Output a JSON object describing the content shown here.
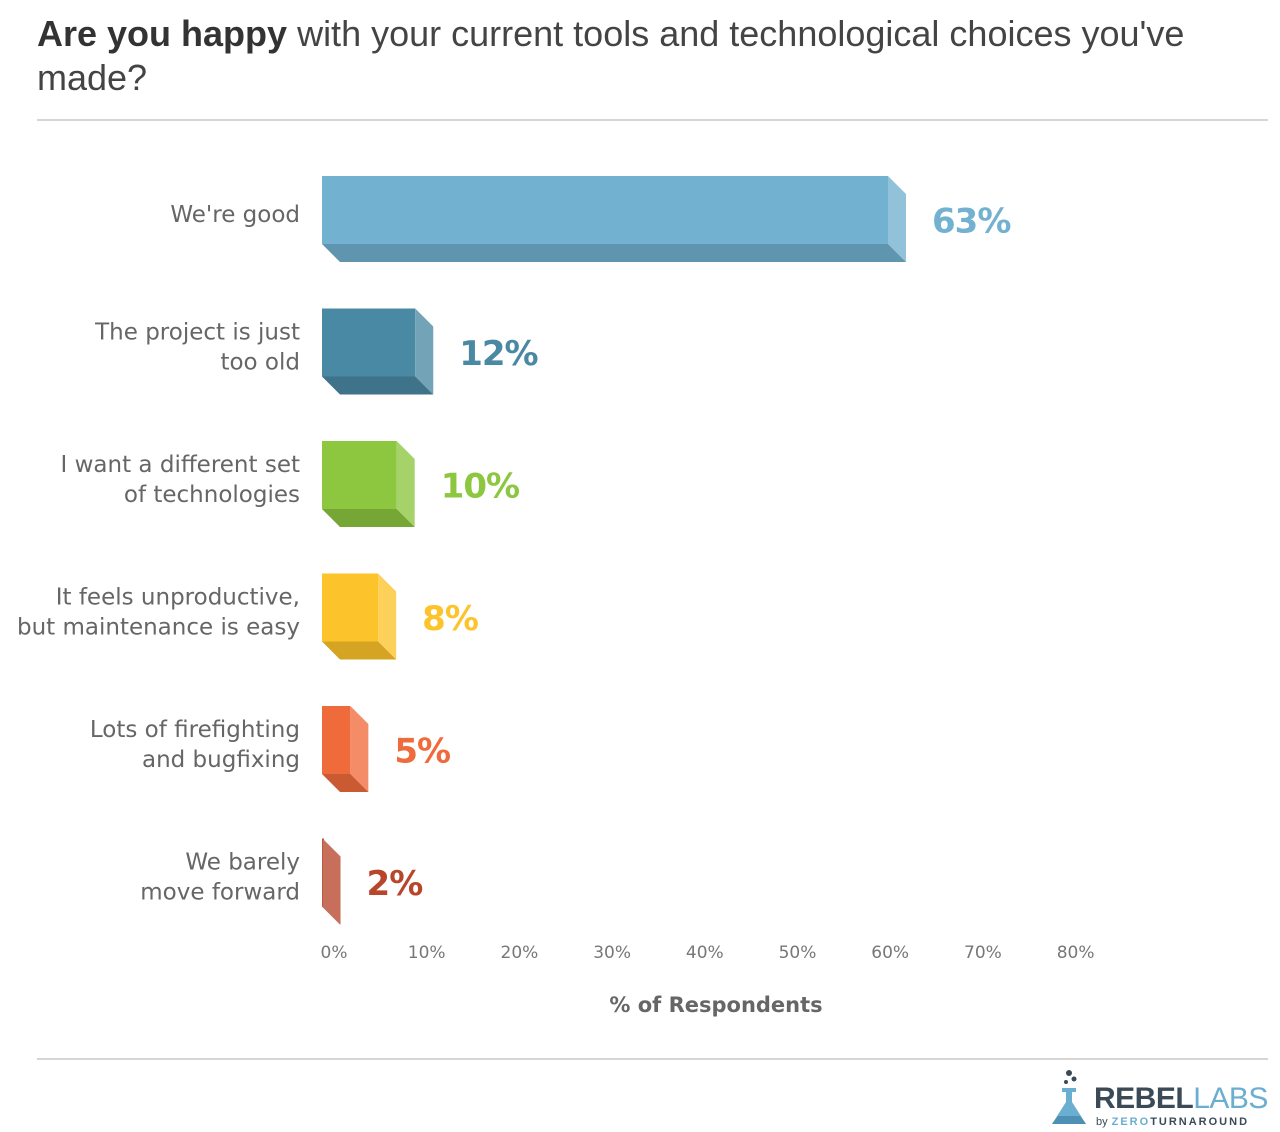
{
  "header": {
    "title_bold": "Are you happy",
    "title_rest": " with your current tools and technological choices you've made?"
  },
  "chart_data": {
    "type": "bar",
    "orientation": "horizontal",
    "style": "3d-bar",
    "categories": [
      [
        "We're good"
      ],
      [
        "The project is just",
        "too old"
      ],
      [
        "I want a different set",
        "of technologies"
      ],
      [
        "It feels unproductive,",
        "but maintenance is easy"
      ],
      [
        "Lots of firefighting",
        "and bugfixing"
      ],
      [
        "We barely",
        "move forward"
      ]
    ],
    "values": [
      63,
      12,
      10,
      8,
      5,
      2
    ],
    "value_labels": [
      "63%",
      "12%",
      "10%",
      "8%",
      "5%",
      "2%"
    ],
    "colors": [
      "#72b1d0",
      "#4a89a3",
      "#8dc63f",
      "#fdc32a",
      "#ef6b3c",
      "#b7462b"
    ],
    "xticks": [
      "0%",
      "10%",
      "20%",
      "30%",
      "40%",
      "50%",
      "60%",
      "70%",
      "80%"
    ],
    "xlim": [
      0,
      80
    ],
    "xlabel": "% of Respondents",
    "grid": false
  },
  "logo": {
    "word_1": "REBEL",
    "word_2": "LABS",
    "by": "by",
    "sub_1": "ZERO",
    "sub_2": "TURNAROUND"
  }
}
